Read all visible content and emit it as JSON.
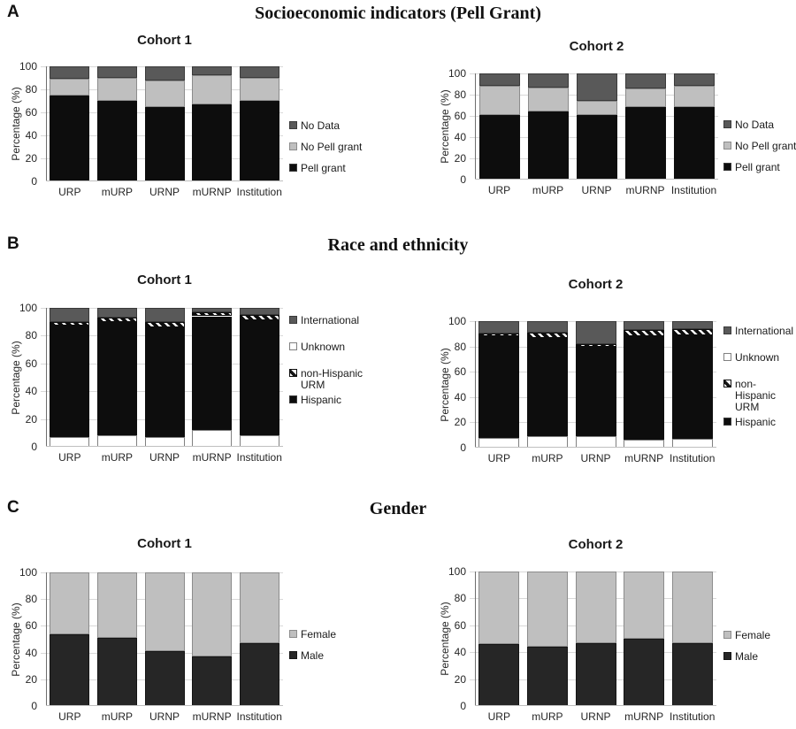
{
  "figure_title_panels": [
    {
      "letter": "A",
      "title": "Socioeconomic indicators (Pell Grant)"
    },
    {
      "letter": "B",
      "title": "Race and ethnicity"
    },
    {
      "letter": "C",
      "title": "Gender"
    }
  ],
  "colors": {
    "black": "#0d0d0d",
    "darkgray": "#595959",
    "lightgray": "#bfbfbf",
    "white": "#ffffff",
    "male": "#262626",
    "female": "#bfbfbf",
    "gridline": "#d9d9d9",
    "background": "#ffffff"
  },
  "chart_data": [
    {
      "type": "bar",
      "stacked": true,
      "panel": "A",
      "title": "Socioeconomic indicators (Pell Grant)",
      "subtitle": "Cohort 1",
      "categories": [
        "URP",
        "mURP",
        "URNP",
        "mURNP",
        "Institution"
      ],
      "ylabel": "Percentage (%)",
      "ylim": [
        0,
        100
      ],
      "yticks": [
        0,
        20,
        40,
        60,
        80,
        100
      ],
      "grid": true,
      "legend_position": "right",
      "legend": [
        {
          "label": "No Data",
          "swatch": "darkgray"
        },
        {
          "label": "No Pell grant",
          "swatch": "lightgray"
        },
        {
          "label": "Pell grant",
          "swatch": "black"
        }
      ],
      "series": [
        {
          "name": "Pell grant",
          "swatch": "black",
          "values": [
            75,
            70,
            65,
            67,
            70
          ]
        },
        {
          "name": "No Pell grant",
          "swatch": "lightgray",
          "values": [
            14,
            20,
            23,
            25,
            20
          ]
        },
        {
          "name": "No Data",
          "swatch": "darkgray",
          "values": [
            11,
            10,
            12,
            8,
            10
          ]
        }
      ]
    },
    {
      "type": "bar",
      "stacked": true,
      "panel": "A",
      "title": "Socioeconomic indicators (Pell Grant)",
      "subtitle": "Cohort 2",
      "categories": [
        "URP",
        "mURP",
        "URNP",
        "mURNP",
        "Institution"
      ],
      "ylabel": "Percentage (%)",
      "ylim": [
        0,
        100
      ],
      "yticks": [
        0,
        20,
        40,
        60,
        80,
        100
      ],
      "grid": true,
      "legend_position": "right",
      "legend": [
        {
          "label": "No Data",
          "swatch": "darkgray"
        },
        {
          "label": "No Pell grant",
          "swatch": "lightgray"
        },
        {
          "label": "Pell grant",
          "swatch": "black"
        }
      ],
      "series": [
        {
          "name": "Pell grant",
          "swatch": "black",
          "values": [
            61,
            64,
            61,
            68,
            68
          ]
        },
        {
          "name": "No Pell grant",
          "swatch": "lightgray",
          "values": [
            27,
            23,
            13,
            18,
            20
          ]
        },
        {
          "name": "No Data",
          "swatch": "darkgray",
          "values": [
            12,
            13,
            26,
            14,
            12
          ]
        }
      ]
    },
    {
      "type": "bar",
      "stacked": true,
      "panel": "B",
      "title": "Race and ethnicity",
      "subtitle": "Cohort 1",
      "categories": [
        "URP",
        "mURP",
        "URNP",
        "mURNP",
        "Institution"
      ],
      "ylabel": "Percentage (%)",
      "ylim": [
        0,
        100
      ],
      "yticks": [
        0,
        20,
        40,
        60,
        80,
        100
      ],
      "grid": true,
      "legend_position": "right",
      "legend": [
        {
          "label": "International",
          "swatch": "darkgray"
        },
        {
          "label": "Unknown",
          "swatch": "white"
        },
        {
          "label": "non-Hispanic URM",
          "swatch": "hatch",
          "wrap": true
        },
        {
          "label": "Hispanic",
          "swatch": "black"
        }
      ],
      "series": [
        {
          "name": "Unknown",
          "swatch": "white",
          "values": [
            7,
            8,
            7,
            12,
            8
          ]
        },
        {
          "name": "Hispanic",
          "swatch": "black",
          "values": [
            80,
            82,
            79,
            82,
            83
          ]
        },
        {
          "name": "non-Hispanic URM",
          "swatch": "hatch",
          "values": [
            3,
            3,
            4,
            3,
            4
          ]
        },
        {
          "name": "International",
          "swatch": "darkgray",
          "values": [
            10,
            7,
            10,
            3,
            5
          ]
        }
      ]
    },
    {
      "type": "bar",
      "stacked": true,
      "panel": "B",
      "title": "Race and ethnicity",
      "subtitle": "Cohort 2",
      "categories": [
        "URP",
        "mURP",
        "URNP",
        "mURNP",
        "Institution"
      ],
      "ylabel": "Percentage (%)",
      "ylim": [
        0,
        100
      ],
      "yticks": [
        0,
        20,
        40,
        60,
        80,
        100
      ],
      "grid": true,
      "legend_position": "right",
      "legend": [
        {
          "label": "International",
          "swatch": "darkgray"
        },
        {
          "label": "Unknown",
          "swatch": "white"
        },
        {
          "label": "non-Hispanic URM",
          "swatch": "hatch",
          "wrap": true
        },
        {
          "label": "Hispanic",
          "swatch": "black"
        }
      ],
      "series": [
        {
          "name": "Unknown",
          "swatch": "white",
          "values": [
            8,
            9,
            9,
            6,
            7
          ]
        },
        {
          "name": "Hispanic",
          "swatch": "black",
          "values": [
            80,
            78,
            71,
            82,
            82
          ]
        },
        {
          "name": "non-Hispanic URM",
          "swatch": "hatch",
          "values": [
            2,
            4,
            2,
            5,
            5
          ]
        },
        {
          "name": "International",
          "swatch": "darkgray",
          "values": [
            10,
            9,
            18,
            7,
            6
          ]
        }
      ]
    },
    {
      "type": "bar",
      "stacked": true,
      "panel": "C",
      "title": "Gender",
      "subtitle": "Cohort 1",
      "categories": [
        "URP",
        "mURP",
        "URNP",
        "mURNP",
        "Institution"
      ],
      "ylabel": "Percentage (%)",
      "ylim": [
        0,
        100
      ],
      "yticks": [
        0,
        20,
        40,
        60,
        80,
        100
      ],
      "grid": true,
      "legend_position": "right",
      "legend": [
        {
          "label": "Female",
          "swatch": "female"
        },
        {
          "label": "Male",
          "swatch": "male"
        }
      ],
      "series": [
        {
          "name": "Male",
          "swatch": "male",
          "values": [
            54,
            51,
            41,
            37,
            47
          ]
        },
        {
          "name": "Female",
          "swatch": "female",
          "values": [
            46,
            49,
            59,
            63,
            53
          ]
        }
      ]
    },
    {
      "type": "bar",
      "stacked": true,
      "panel": "C",
      "title": "Gender",
      "subtitle": "Cohort 2",
      "categories": [
        "URP",
        "mURP",
        "URNP",
        "mURNP",
        "Institution"
      ],
      "ylabel": "Percentage (%)",
      "ylim": [
        0,
        100
      ],
      "yticks": [
        0,
        20,
        40,
        60,
        80,
        100
      ],
      "grid": true,
      "legend_position": "right",
      "legend": [
        {
          "label": "Female",
          "swatch": "female"
        },
        {
          "label": "Male",
          "swatch": "male"
        }
      ],
      "series": [
        {
          "name": "Male",
          "swatch": "male",
          "values": [
            46,
            44,
            47,
            50,
            47
          ]
        },
        {
          "name": "Female",
          "swatch": "female",
          "values": [
            54,
            56,
            53,
            50,
            53
          ]
        }
      ]
    }
  ]
}
